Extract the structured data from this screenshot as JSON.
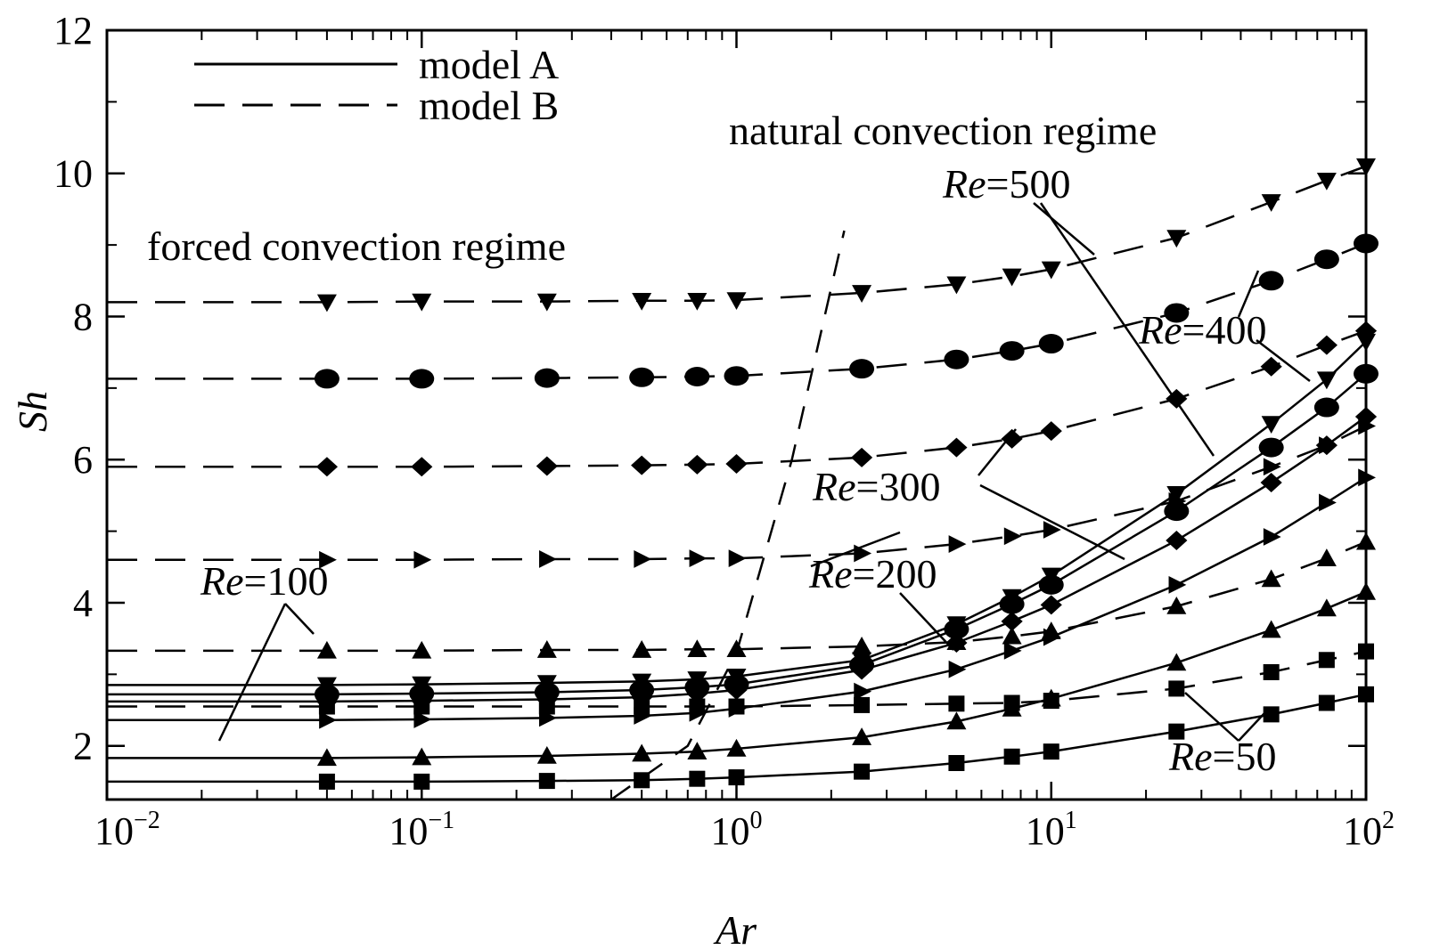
{
  "chart_data": {
    "type": "line",
    "xlabel": "Ar",
    "ylabel": "Sh",
    "xscale": "log",
    "xlim": [
      0.01,
      100
    ],
    "ylim": [
      1.25,
      12
    ],
    "grid": false,
    "legend_placement": "top-left",
    "x_tick_labels": [
      {
        "base": "10",
        "exp": "−2"
      },
      {
        "base": "10",
        "exp": "−1"
      },
      {
        "base": "10",
        "exp": "0"
      },
      {
        "base": "10",
        "exp": "1"
      },
      {
        "base": "10",
        "exp": "2"
      }
    ],
    "y_ticks": [
      2,
      4,
      6,
      8,
      10,
      12
    ],
    "y_tick_labels": [
      "2",
      "4",
      "6",
      "8",
      "10",
      "12"
    ],
    "legend": [
      {
        "label": "model A",
        "style": "solid"
      },
      {
        "label": "model B",
        "style": "dashed"
      }
    ],
    "annotations": {
      "forced": "forced convection regime",
      "natural": "natural convection regime",
      "re_prefix": "Re",
      "re500": "=500",
      "re400": "=400",
      "re300": "=300",
      "re200": "=200",
      "re100": "=100",
      "re50": "=50"
    },
    "boundary_curve": {
      "x": [
        0.4,
        0.7,
        1.0,
        1.5,
        2.2
      ],
      "y": [
        1.25,
        2.0,
        3.3,
        6.0,
        9.2
      ]
    },
    "x": [
      0.05,
      0.1,
      0.25,
      0.5,
      0.75,
      1,
      2.5,
      5,
      7.5,
      10,
      25,
      50,
      75,
      100
    ],
    "series": [
      {
        "Re": 50,
        "model": "A",
        "marker": "square",
        "y": [
          1.5,
          1.5,
          1.51,
          1.52,
          1.54,
          1.56,
          1.64,
          1.76,
          1.85,
          1.92,
          2.2,
          2.44,
          2.6,
          2.72
        ]
      },
      {
        "Re": 100,
        "model": "A",
        "marker": "triangle-up",
        "y": [
          1.83,
          1.84,
          1.86,
          1.89,
          1.92,
          1.96,
          2.12,
          2.34,
          2.52,
          2.66,
          3.16,
          3.62,
          3.92,
          4.15
        ]
      },
      {
        "Re": 200,
        "model": "A",
        "marker": "triangle-right",
        "y": [
          2.36,
          2.37,
          2.39,
          2.42,
          2.46,
          2.52,
          2.76,
          3.07,
          3.33,
          3.52,
          4.25,
          4.92,
          5.4,
          5.75
        ]
      },
      {
        "Re": 300,
        "model": "A",
        "marker": "diamond",
        "y": [
          2.62,
          2.63,
          2.65,
          2.68,
          2.73,
          2.78,
          3.06,
          3.44,
          3.74,
          3.97,
          4.87,
          5.68,
          6.2,
          6.6
        ]
      },
      {
        "Re": 400,
        "model": "A",
        "marker": "circle",
        "y": [
          2.72,
          2.73,
          2.75,
          2.78,
          2.82,
          2.86,
          3.13,
          3.63,
          3.98,
          4.25,
          5.28,
          6.17,
          6.73,
          7.2
        ]
      },
      {
        "Re": 500,
        "model": "A",
        "marker": "triangle-down",
        "y": [
          2.85,
          2.86,
          2.88,
          2.9,
          2.93,
          2.97,
          3.2,
          3.7,
          4.08,
          4.38,
          5.52,
          6.5,
          7.12,
          7.65
        ]
      },
      {
        "Re": 50,
        "model": "B",
        "marker": "square",
        "y": [
          2.55,
          2.55,
          2.55,
          2.55,
          2.55,
          2.55,
          2.57,
          2.59,
          2.6,
          2.63,
          2.8,
          3.03,
          3.2,
          3.32
        ]
      },
      {
        "Re": 100,
        "model": "B",
        "marker": "triangle-up",
        "y": [
          3.33,
          3.33,
          3.34,
          3.34,
          3.35,
          3.35,
          3.39,
          3.45,
          3.53,
          3.6,
          3.95,
          4.33,
          4.62,
          4.85
        ]
      },
      {
        "Re": 200,
        "model": "B",
        "marker": "triangle-right",
        "y": [
          4.6,
          4.6,
          4.61,
          4.61,
          4.62,
          4.62,
          4.69,
          4.82,
          4.93,
          5.02,
          5.42,
          5.9,
          6.2,
          6.47
        ]
      },
      {
        "Re": 300,
        "model": "B",
        "marker": "diamond",
        "y": [
          5.9,
          5.9,
          5.91,
          5.92,
          5.93,
          5.94,
          6.03,
          6.17,
          6.29,
          6.4,
          6.85,
          7.3,
          7.6,
          7.8
        ]
      },
      {
        "Re": 400,
        "model": "B",
        "marker": "circle",
        "y": [
          7.13,
          7.13,
          7.14,
          7.15,
          7.16,
          7.17,
          7.27,
          7.4,
          7.52,
          7.62,
          8.05,
          8.5,
          8.8,
          9.02
        ]
      },
      {
        "Re": 500,
        "model": "B",
        "marker": "triangle-down",
        "y": [
          8.2,
          8.21,
          8.21,
          8.22,
          8.22,
          8.23,
          8.33,
          8.45,
          8.56,
          8.66,
          9.1,
          9.6,
          9.9,
          10.1
        ]
      }
    ]
  }
}
